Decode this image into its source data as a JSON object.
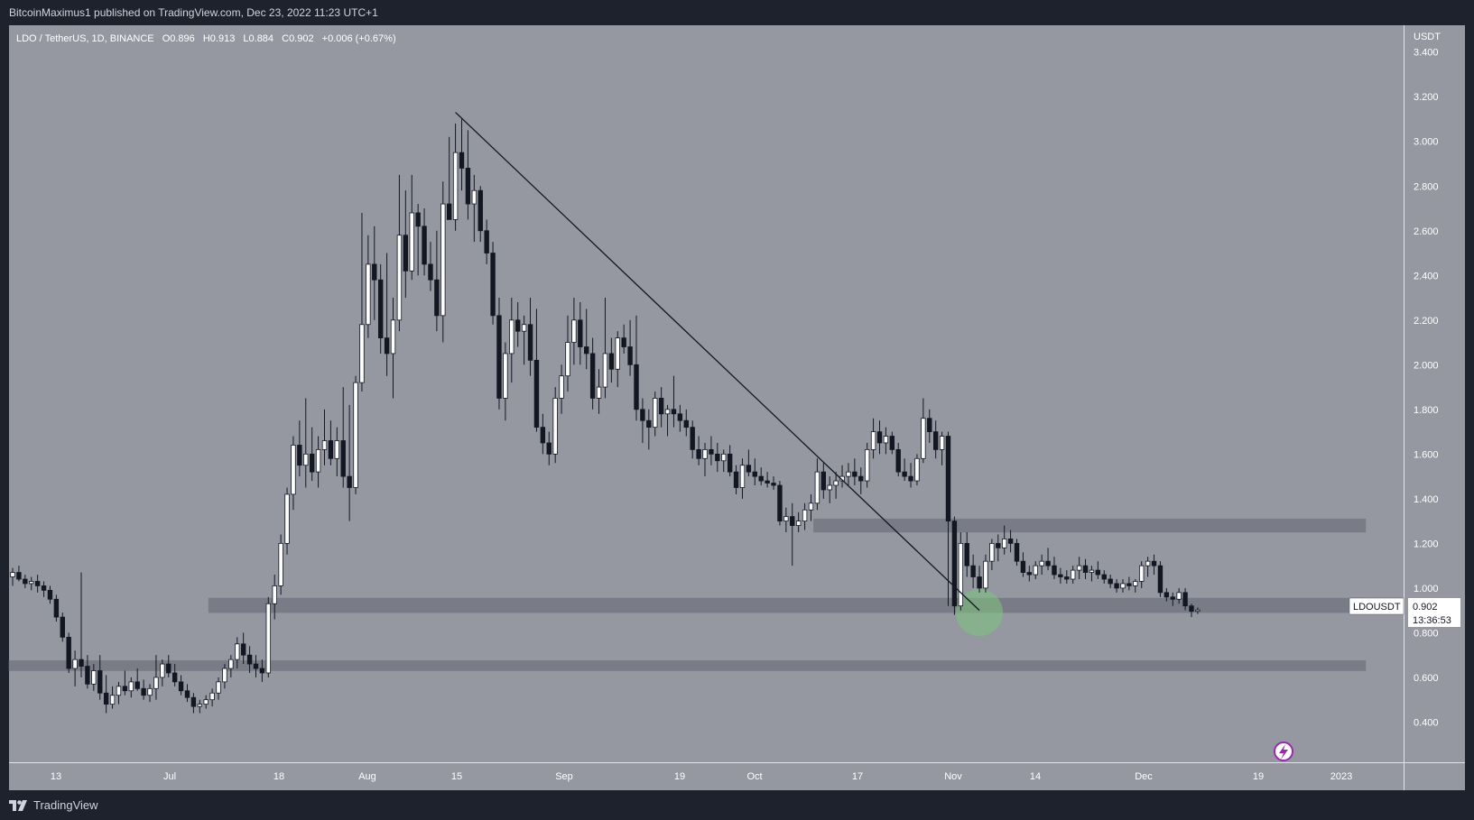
{
  "header": {
    "published_text": "BitcoinMaximus1 published on TradingView.com, Dec 23, 2022 11:23 UTC+1"
  },
  "footer": {
    "brand": "TradingView",
    "brand_icon": "tradingview-logo-icon"
  },
  "chart_data": {
    "type": "candlestick",
    "symbol_line": {
      "title": "LDO / TetherUS, 1D, BINANCE",
      "o_label": "O",
      "o_value": "0.896",
      "h_label": "H",
      "h_value": "0.913",
      "l_label": "L",
      "l_value": "0.884",
      "c_label": "C",
      "c_value": "0.902",
      "change": "+0.006 (+0.67%)"
    },
    "currency_label": "USDT",
    "y_axis": {
      "range": [
        0.22,
        3.52
      ],
      "ticks": [
        "3.400",
        "3.200",
        "3.000",
        "2.800",
        "2.600",
        "2.400",
        "2.200",
        "2.000",
        "1.800",
        "1.600",
        "1.400",
        "1.200",
        "1.000",
        "0.800",
        "0.600",
        "0.400"
      ]
    },
    "x_axis": {
      "ticks": [
        "13",
        "Jul",
        "18",
        "Aug",
        "15",
        "Sep",
        "19",
        "Oct",
        "17",
        "Nov",
        "14",
        "Dec",
        "19",
        "2023"
      ]
    },
    "price_label": {
      "symbol": "LDOUSDT",
      "price": "0.902",
      "countdown": "13:36:53"
    },
    "candles": [
      [
        1.05,
        1.09,
        1.01,
        1.07
      ],
      [
        1.07,
        1.1,
        1.03,
        1.04
      ],
      [
        1.04,
        1.06,
        1.0,
        1.02
      ],
      [
        1.02,
        1.05,
        0.99,
        1.03
      ],
      [
        1.03,
        1.06,
        0.98,
        1.01
      ],
      [
        1.01,
        1.03,
        0.96,
        0.99
      ],
      [
        0.99,
        1.01,
        0.93,
        0.95
      ],
      [
        0.95,
        0.97,
        0.85,
        0.87
      ],
      [
        0.87,
        0.89,
        0.76,
        0.78
      ],
      [
        0.78,
        0.8,
        0.62,
        0.64
      ],
      [
        0.64,
        0.72,
        0.56,
        0.68
      ],
      [
        0.68,
        1.07,
        0.6,
        0.65
      ],
      [
        0.65,
        0.7,
        0.55,
        0.57
      ],
      [
        0.57,
        0.66,
        0.54,
        0.63
      ],
      [
        0.63,
        0.7,
        0.5,
        0.53
      ],
      [
        0.53,
        0.61,
        0.44,
        0.48
      ],
      [
        0.48,
        0.56,
        0.46,
        0.52
      ],
      [
        0.52,
        0.58,
        0.48,
        0.56
      ],
      [
        0.56,
        0.63,
        0.52,
        0.54
      ],
      [
        0.54,
        0.6,
        0.51,
        0.58
      ],
      [
        0.58,
        0.64,
        0.54,
        0.55
      ],
      [
        0.55,
        0.59,
        0.5,
        0.52
      ],
      [
        0.52,
        0.57,
        0.49,
        0.55
      ],
      [
        0.55,
        0.7,
        0.5,
        0.6
      ],
      [
        0.6,
        0.68,
        0.56,
        0.66
      ],
      [
        0.66,
        0.7,
        0.6,
        0.62
      ],
      [
        0.62,
        0.66,
        0.56,
        0.58
      ],
      [
        0.58,
        0.61,
        0.52,
        0.54
      ],
      [
        0.54,
        0.57,
        0.49,
        0.51
      ],
      [
        0.51,
        0.53,
        0.44,
        0.47
      ],
      [
        0.47,
        0.5,
        0.44,
        0.48
      ],
      [
        0.48,
        0.52,
        0.46,
        0.5
      ],
      [
        0.5,
        0.55,
        0.47,
        0.53
      ],
      [
        0.53,
        0.6,
        0.5,
        0.58
      ],
      [
        0.58,
        0.66,
        0.55,
        0.64
      ],
      [
        0.64,
        0.7,
        0.6,
        0.68
      ],
      [
        0.68,
        0.78,
        0.64,
        0.75
      ],
      [
        0.75,
        0.8,
        0.66,
        0.7
      ],
      [
        0.7,
        0.74,
        0.62,
        0.66
      ],
      [
        0.66,
        0.7,
        0.6,
        0.64
      ],
      [
        0.64,
        0.68,
        0.58,
        0.62
      ],
      [
        0.62,
        0.96,
        0.6,
        0.93
      ],
      [
        0.93,
        1.06,
        0.86,
        1.01
      ],
      [
        1.01,
        1.24,
        0.97,
        1.2
      ],
      [
        1.2,
        1.45,
        1.15,
        1.42
      ],
      [
        1.42,
        1.68,
        1.35,
        1.64
      ],
      [
        1.64,
        1.75,
        1.5,
        1.55
      ],
      [
        1.55,
        1.85,
        1.45,
        1.6
      ],
      [
        1.6,
        1.72,
        1.48,
        1.52
      ],
      [
        1.52,
        1.68,
        1.45,
        1.62
      ],
      [
        1.62,
        1.8,
        1.55,
        1.66
      ],
      [
        1.66,
        1.75,
        1.55,
        1.58
      ],
      [
        1.58,
        1.72,
        1.5,
        1.66
      ],
      [
        1.66,
        1.9,
        1.45,
        1.5
      ],
      [
        1.5,
        1.82,
        1.3,
        1.45
      ],
      [
        1.45,
        1.95,
        1.42,
        1.92
      ],
      [
        1.92,
        2.68,
        1.88,
        2.18
      ],
      [
        2.18,
        2.58,
        2.12,
        2.45
      ],
      [
        2.45,
        2.62,
        2.2,
        2.38
      ],
      [
        2.38,
        2.45,
        2.05,
        2.12
      ],
      [
        2.12,
        2.5,
        1.95,
        2.05
      ],
      [
        2.05,
        2.3,
        1.85,
        2.2
      ],
      [
        2.2,
        2.85,
        2.15,
        2.58
      ],
      [
        2.58,
        2.78,
        2.3,
        2.42
      ],
      [
        2.42,
        2.85,
        2.38,
        2.68
      ],
      [
        2.68,
        2.72,
        2.4,
        2.62
      ],
      [
        2.62,
        2.7,
        2.4,
        2.45
      ],
      [
        2.45,
        2.55,
        2.33,
        2.38
      ],
      [
        2.38,
        2.6,
        2.15,
        2.22
      ],
      [
        2.22,
        2.82,
        2.1,
        2.72
      ],
      [
        2.72,
        3.02,
        2.65,
        2.65
      ],
      [
        2.65,
        3.08,
        2.6,
        2.95
      ],
      [
        2.95,
        3.1,
        2.78,
        2.88
      ],
      [
        2.88,
        3.05,
        2.65,
        2.72
      ],
      [
        2.72,
        2.85,
        2.55,
        2.78
      ],
      [
        2.78,
        2.8,
        2.55,
        2.6
      ],
      [
        2.6,
        2.65,
        2.45,
        2.5
      ],
      [
        2.5,
        2.55,
        2.18,
        2.22
      ],
      [
        2.22,
        2.3,
        1.8,
        1.85
      ],
      [
        1.85,
        2.1,
        1.75,
        2.05
      ],
      [
        2.05,
        2.3,
        1.92,
        2.2
      ],
      [
        2.2,
        2.28,
        2.08,
        2.15
      ],
      [
        2.15,
        2.22,
        2.0,
        2.18
      ],
      [
        2.18,
        2.3,
        1.95,
        2.02
      ],
      [
        2.02,
        2.25,
        1.7,
        1.72
      ],
      [
        1.72,
        1.78,
        1.6,
        1.65
      ],
      [
        1.65,
        1.7,
        1.55,
        1.6
      ],
      [
        1.6,
        1.9,
        1.56,
        1.85
      ],
      [
        1.85,
        2.0,
        1.78,
        1.95
      ],
      [
        1.95,
        2.22,
        1.88,
        2.1
      ],
      [
        2.1,
        2.3,
        2.0,
        2.2
      ],
      [
        2.2,
        2.28,
        2.0,
        2.08
      ],
      [
        2.08,
        2.25,
        1.98,
        2.05
      ],
      [
        2.05,
        2.12,
        1.8,
        1.85
      ],
      [
        1.85,
        1.98,
        1.78,
        1.9
      ],
      [
        1.9,
        2.3,
        1.85,
        2.05
      ],
      [
        2.05,
        2.12,
        1.92,
        1.98
      ],
      [
        1.98,
        2.15,
        1.9,
        2.12
      ],
      [
        2.12,
        2.18,
        2.05,
        2.08
      ],
      [
        2.08,
        2.2,
        1.95,
        2.0
      ],
      [
        2.0,
        2.22,
        1.75,
        1.8
      ],
      [
        1.8,
        1.85,
        1.65,
        1.75
      ],
      [
        1.75,
        1.8,
        1.62,
        1.72
      ],
      [
        1.72,
        1.88,
        1.68,
        1.85
      ],
      [
        1.85,
        1.9,
        1.72,
        1.78
      ],
      [
        1.78,
        1.82,
        1.68,
        1.8
      ],
      [
        1.8,
        1.95,
        1.72,
        1.78
      ],
      [
        1.78,
        1.82,
        1.7,
        1.75
      ],
      [
        1.75,
        1.8,
        1.68,
        1.72
      ],
      [
        1.72,
        1.75,
        1.58,
        1.62
      ],
      [
        1.62,
        1.68,
        1.55,
        1.58
      ],
      [
        1.58,
        1.65,
        1.5,
        1.62
      ],
      [
        1.62,
        1.68,
        1.55,
        1.6
      ],
      [
        1.6,
        1.65,
        1.52,
        1.57
      ],
      [
        1.57,
        1.62,
        1.52,
        1.6
      ],
      [
        1.6,
        1.64,
        1.5,
        1.52
      ],
      [
        1.52,
        1.55,
        1.42,
        1.45
      ],
      [
        1.45,
        1.58,
        1.4,
        1.55
      ],
      [
        1.55,
        1.62,
        1.5,
        1.52
      ],
      [
        1.52,
        1.58,
        1.46,
        1.5
      ],
      [
        1.5,
        1.54,
        1.46,
        1.48
      ],
      [
        1.48,
        1.52,
        1.45,
        1.47
      ],
      [
        1.47,
        1.5,
        1.44,
        1.46
      ],
      [
        1.46,
        1.48,
        1.28,
        1.3
      ],
      [
        1.3,
        1.36,
        1.25,
        1.32
      ],
      [
        1.32,
        1.38,
        1.1,
        1.28
      ],
      [
        1.28,
        1.34,
        1.25,
        1.3
      ],
      [
        1.3,
        1.38,
        1.26,
        1.35
      ],
      [
        1.35,
        1.42,
        1.3,
        1.38
      ],
      [
        1.38,
        1.58,
        1.35,
        1.52
      ],
      [
        1.52,
        1.56,
        1.4,
        1.44
      ],
      [
        1.44,
        1.5,
        1.38,
        1.46
      ],
      [
        1.46,
        1.52,
        1.4,
        1.48
      ],
      [
        1.48,
        1.55,
        1.45,
        1.5
      ],
      [
        1.5,
        1.56,
        1.46,
        1.52
      ],
      [
        1.52,
        1.58,
        1.46,
        1.5
      ],
      [
        1.5,
        1.54,
        1.42,
        1.48
      ],
      [
        1.48,
        1.65,
        1.45,
        1.62
      ],
      [
        1.62,
        1.76,
        1.58,
        1.7
      ],
      [
        1.7,
        1.75,
        1.6,
        1.65
      ],
      [
        1.65,
        1.72,
        1.6,
        1.68
      ],
      [
        1.68,
        1.7,
        1.6,
        1.62
      ],
      [
        1.62,
        1.65,
        1.5,
        1.52
      ],
      [
        1.52,
        1.58,
        1.48,
        1.5
      ],
      [
        1.5,
        1.56,
        1.45,
        1.48
      ],
      [
        1.48,
        1.6,
        1.46,
        1.58
      ],
      [
        1.58,
        1.85,
        1.56,
        1.76
      ],
      [
        1.76,
        1.8,
        1.65,
        1.7
      ],
      [
        1.7,
        1.75,
        1.58,
        1.62
      ],
      [
        1.62,
        1.7,
        1.55,
        1.68
      ],
      [
        1.68,
        1.7,
        0.92,
        1.3
      ],
      [
        1.3,
        1.32,
        0.88,
        0.92
      ],
      [
        0.92,
        1.25,
        0.9,
        1.2
      ],
      [
        1.2,
        1.25,
        1.05,
        1.1
      ],
      [
        1.1,
        1.15,
        1.0,
        1.05
      ],
      [
        1.05,
        1.1,
        0.98,
        1.0
      ],
      [
        1.0,
        1.15,
        0.98,
        1.12
      ],
      [
        1.12,
        1.22,
        1.08,
        1.2
      ],
      [
        1.2,
        1.24,
        1.12,
        1.18
      ],
      [
        1.18,
        1.28,
        1.15,
        1.22
      ],
      [
        1.22,
        1.26,
        1.16,
        1.2
      ],
      [
        1.2,
        1.22,
        1.1,
        1.12
      ],
      [
        1.12,
        1.16,
        1.05,
        1.07
      ],
      [
        1.07,
        1.1,
        1.03,
        1.06
      ],
      [
        1.06,
        1.12,
        1.04,
        1.1
      ],
      [
        1.1,
        1.15,
        1.06,
        1.12
      ],
      [
        1.12,
        1.18,
        1.08,
        1.1
      ],
      [
        1.1,
        1.14,
        1.04,
        1.06
      ],
      [
        1.06,
        1.09,
        1.02,
        1.05
      ],
      [
        1.05,
        1.08,
        1.02,
        1.04
      ],
      [
        1.04,
        1.1,
        1.02,
        1.08
      ],
      [
        1.08,
        1.14,
        1.04,
        1.1
      ],
      [
        1.1,
        1.13,
        1.04,
        1.07
      ],
      [
        1.07,
        1.1,
        1.03,
        1.08
      ],
      [
        1.08,
        1.12,
        1.04,
        1.06
      ],
      [
        1.06,
        1.08,
        1.02,
        1.04
      ],
      [
        1.04,
        1.06,
        1.0,
        1.02
      ],
      [
        1.02,
        1.04,
        0.98,
        1.0
      ],
      [
        1.0,
        1.04,
        0.98,
        1.02
      ],
      [
        1.02,
        1.05,
        0.99,
        1.01
      ],
      [
        1.01,
        1.04,
        0.98,
        1.03
      ],
      [
        1.03,
        1.12,
        1.0,
        1.1
      ],
      [
        1.1,
        1.14,
        1.05,
        1.12
      ],
      [
        1.12,
        1.15,
        1.06,
        1.1
      ],
      [
        1.1,
        1.12,
        0.96,
        0.98
      ],
      [
        0.98,
        1.0,
        0.94,
        0.96
      ],
      [
        0.96,
        0.98,
        0.92,
        0.95
      ],
      [
        0.95,
        1.0,
        0.93,
        0.98
      ],
      [
        0.98,
        1.0,
        0.9,
        0.92
      ],
      [
        0.92,
        0.93,
        0.87,
        0.896
      ],
      [
        0.896,
        0.913,
        0.884,
        0.902
      ]
    ],
    "trendline": {
      "from": [
        71,
        3.13
      ],
      "to": [
        155,
        0.9
      ]
    },
    "zones": [
      {
        "from_index": 129,
        "y_bottom": 1.25,
        "y_top": 1.31
      },
      {
        "from_index": 32,
        "y_bottom": 0.89,
        "y_top": 0.955
      },
      {
        "from_index": 0,
        "y_bottom": 0.63,
        "y_top": 0.675
      }
    ],
    "highlight": {
      "index": 155,
      "value": 0.89
    }
  }
}
